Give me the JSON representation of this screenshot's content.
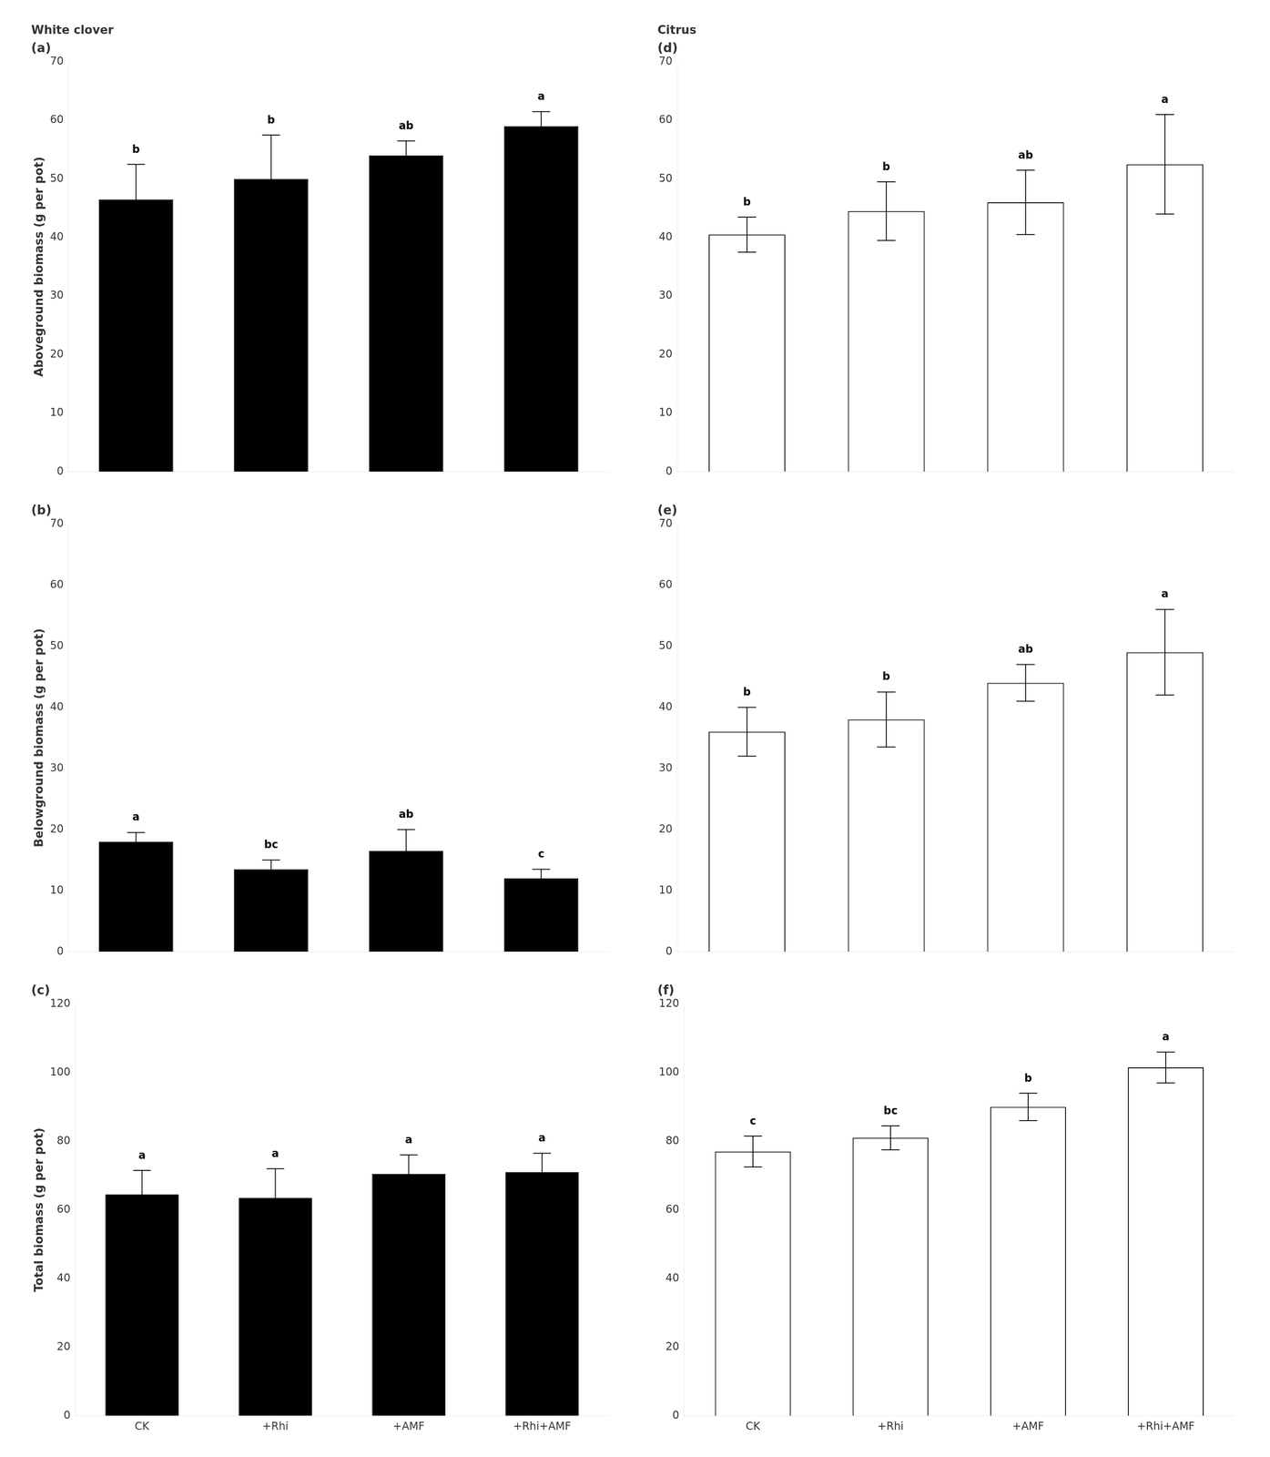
{
  "chart_data": [
    {
      "type": "bar",
      "title": "White clover",
      "subtitle": "(a)",
      "ylabel": "Aboveground biomass (g per pot)",
      "categories": [
        "CK",
        "+Rhi",
        "+AMF",
        "+Rhi+AMF"
      ],
      "values": [
        46.5,
        50.0,
        54.0,
        59.0
      ],
      "errors": [
        6.0,
        7.5,
        2.5,
        2.5
      ],
      "color": "black",
      "annotations": [
        {
          "x": "CK",
          "text": "b"
        },
        {
          "x": "+Rhi",
          "text": "b"
        },
        {
          "x": "+AMF",
          "text": "ab"
        },
        {
          "x": "+Rhi+AMF",
          "text": "a"
        }
      ],
      "ylim": [
        0,
        70
      ],
      "yticks": [
        0,
        10,
        20,
        30,
        40,
        50,
        60,
        70
      ],
      "grid": false,
      "tick_labels": "y"
    },
    {
      "type": "bar",
      "title": "Citrus",
      "subtitle": "(d)",
      "categories": [
        "CK",
        "+Rhi",
        "+AMF",
        "+Rhi+AMF"
      ],
      "values": [
        40.5,
        44.5,
        46.0,
        52.5
      ],
      "errors": [
        3.0,
        5.0,
        5.5,
        8.5
      ],
      "color": "white",
      "annotations": [
        {
          "x": "CK",
          "text": "b"
        },
        {
          "x": "+Rhi",
          "text": "b"
        },
        {
          "x": "+AMF",
          "text": "ab"
        },
        {
          "x": "+Rhi+AMF",
          "text": "a"
        }
      ],
      "ylim": [
        0,
        70
      ],
      "yticks": [
        0,
        10,
        20,
        30,
        40,
        50,
        60,
        70
      ],
      "grid": false,
      "tick_labels": "y"
    },
    {
      "type": "bar",
      "subtitle": "(b)",
      "ylabel": "Belowground biomass (g per pot)",
      "categories": [
        "CK",
        "+Rhi",
        "+AMF",
        "+Rhi+AMF"
      ],
      "values": [
        18.0,
        13.5,
        16.5,
        12.0
      ],
      "errors": [
        1.5,
        1.5,
        3.5,
        1.5
      ],
      "color": "black",
      "annotations": [
        {
          "x": "CK",
          "text": "a"
        },
        {
          "x": "+Rhi",
          "text": "bc"
        },
        {
          "x": "+AMF",
          "text": "ab"
        },
        {
          "x": "+Rhi+AMF",
          "text": "c"
        }
      ],
      "ylim": [
        0,
        70
      ],
      "yticks": [
        0,
        10,
        20,
        30,
        40,
        50,
        60,
        70
      ],
      "grid": false,
      "tick_labels": "y"
    },
    {
      "type": "bar",
      "subtitle": "(e)",
      "categories": [
        "CK",
        "+Rhi",
        "+AMF",
        "+Rhi+AMF"
      ],
      "values": [
        36.0,
        38.0,
        44.0,
        49.0
      ],
      "errors": [
        4.0,
        4.5,
        3.0,
        7.0
      ],
      "color": "white",
      "annotations": [
        {
          "x": "CK",
          "text": "b"
        },
        {
          "x": "+Rhi",
          "text": "b"
        },
        {
          "x": "+AMF",
          "text": "ab"
        },
        {
          "x": "+Rhi+AMF",
          "text": "a"
        }
      ],
      "ylim": [
        0,
        70
      ],
      "yticks": [
        0,
        10,
        20,
        30,
        40,
        50,
        60,
        70
      ],
      "grid": false,
      "tick_labels": "y"
    },
    {
      "type": "bar",
      "subtitle": "(c)",
      "ylabel": "Total biomass (g per pot)",
      "categories": [
        "CK",
        "+Rhi",
        "+AMF",
        "+Rhi+AMF"
      ],
      "values": [
        64.5,
        63.5,
        70.5,
        71.0
      ],
      "errors": [
        7.0,
        8.5,
        5.5,
        5.5
      ],
      "color": "black",
      "annotations": [
        {
          "x": "CK",
          "text": "a"
        },
        {
          "x": "+Rhi",
          "text": "a"
        },
        {
          "x": "+AMF",
          "text": "a"
        },
        {
          "x": "+Rhi+AMF",
          "text": "a"
        }
      ],
      "ylim": [
        0,
        120
      ],
      "yticks": [
        0,
        20,
        40,
        60,
        80,
        100,
        120
      ],
      "grid": false
    },
    {
      "type": "bar",
      "subtitle": "(f)",
      "categories": [
        "CK",
        "+Rhi",
        "+AMF",
        "+Rhi+AMF"
      ],
      "values": [
        77.0,
        81.0,
        90.0,
        101.5
      ],
      "errors": [
        4.5,
        3.5,
        4.0,
        4.5
      ],
      "color": "white",
      "annotations": [
        {
          "x": "CK",
          "text": "c"
        },
        {
          "x": "+Rhi",
          "text": "bc"
        },
        {
          "x": "+AMF",
          "text": "b"
        },
        {
          "x": "+Rhi+AMF",
          "text": "a"
        }
      ],
      "ylim": [
        0,
        120
      ],
      "yticks": [
        0,
        20,
        40,
        60,
        80,
        100,
        120
      ],
      "grid": false
    }
  ]
}
